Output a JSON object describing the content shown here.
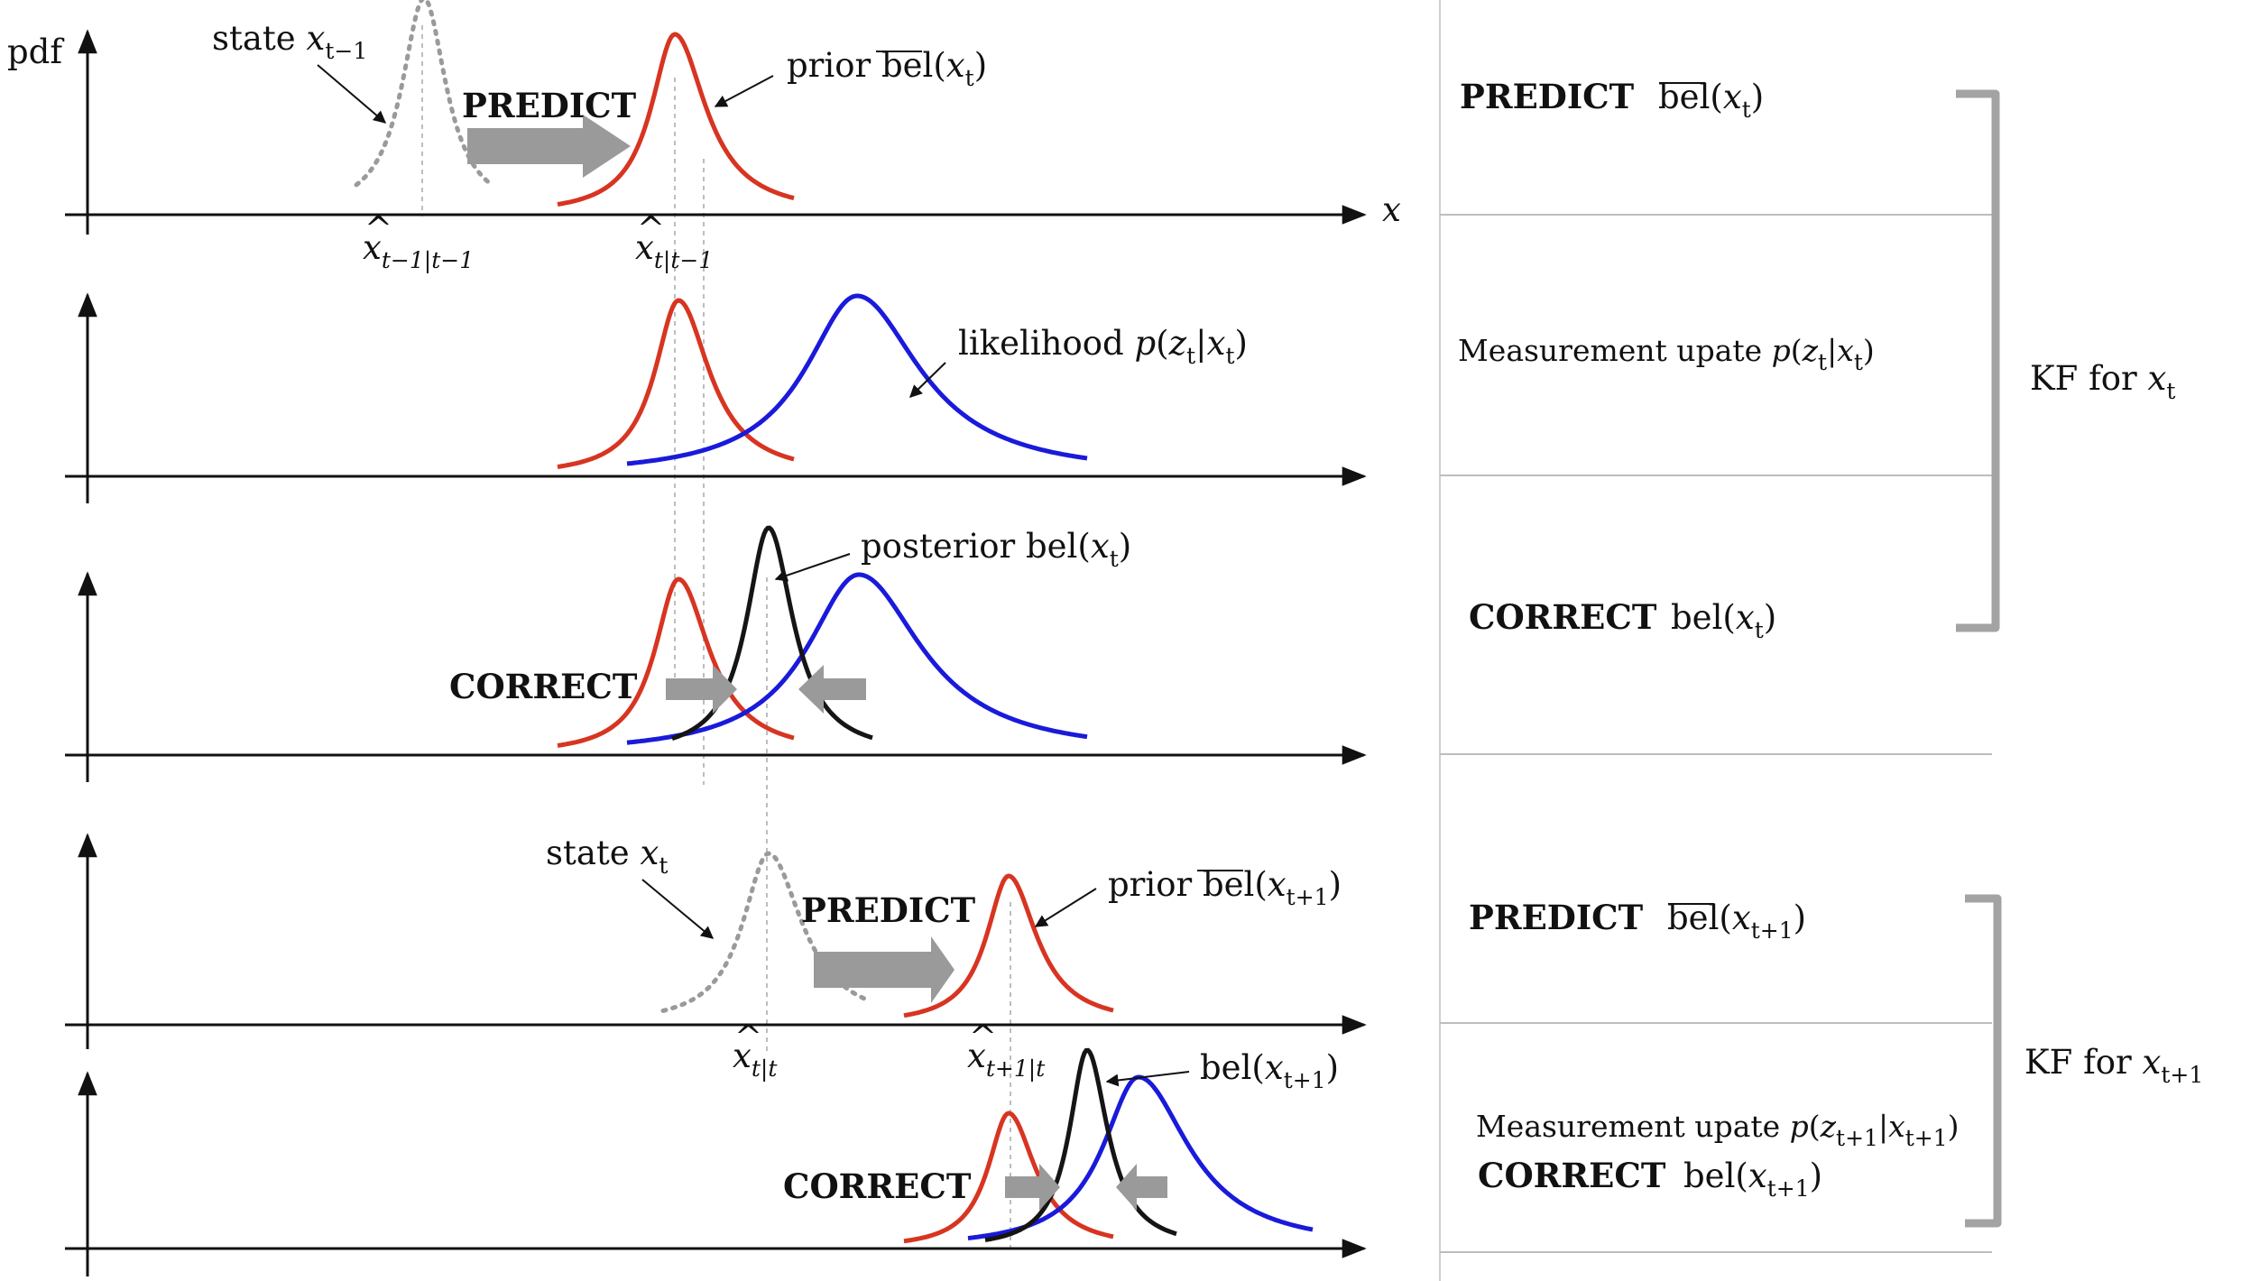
{
  "colors": {
    "prior": "#d73521",
    "likelihood": "#1a1adb",
    "posterior": "#151515",
    "state": "#9a9a9a",
    "arrow": "#9a9a9a",
    "axis": "#111111",
    "divider": "#bdbdbd",
    "bracket": "#a3a3a3"
  },
  "labels": {
    "pdf": "pdf",
    "x_axis": "x",
    "predict": "PREDICT",
    "correct": "CORRECT",
    "state_word": "state",
    "prior_word": "prior",
    "bel_word": "bel",
    "posterior_word": "posterior",
    "likelihood_word": "likelihood",
    "measurement_update": "Measurement upate",
    "kf_for": "KF for",
    "var_x": "x",
    "var_z": "z",
    "var_p": "p",
    "sub_t": "t",
    "sub_tm1": "t−1",
    "sub_tp1": "t+1",
    "sub_xhat_prev": "t−1|t−1",
    "sub_xhat_pred": "t|t−1",
    "sub_xhat_post": "t|t",
    "sub_xhat_next": "t+1|t"
  }
}
